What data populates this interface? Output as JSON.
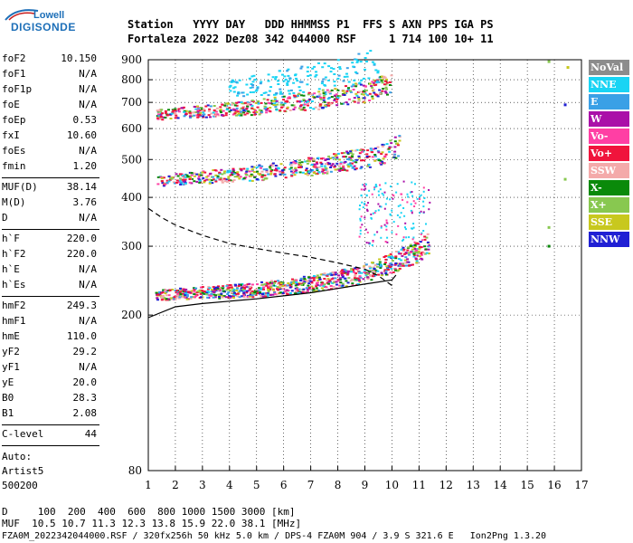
{
  "logo": {
    "top": "Lowell",
    "main": "DIGISONDE"
  },
  "header": {
    "line1": "Station   YYYY DAY   DDD HHMMSS P1  FFS S AXN PPS IGA PS",
    "line2": "Fortaleza 2022 Dez08 342 044000 RSF     1 714 100 10+ 11"
  },
  "params": {
    "group1": [
      {
        "label": "foF2",
        "value": "10.150"
      },
      {
        "label": "foF1",
        "value": "N/A"
      },
      {
        "label": "foF1p",
        "value": "N/A"
      },
      {
        "label": "foE",
        "value": "N/A"
      },
      {
        "label": "foEp",
        "value": "0.53"
      },
      {
        "label": "fxI",
        "value": "10.60"
      },
      {
        "label": "foEs",
        "value": "N/A"
      },
      {
        "label": "fmin",
        "value": "1.20"
      }
    ],
    "group2": [
      {
        "label": "MUF(D)",
        "value": "38.14"
      },
      {
        "label": "M(D)",
        "value": "3.76"
      },
      {
        "label": "D",
        "value": "N/A"
      }
    ],
    "group3": [
      {
        "label": "h`F",
        "value": "220.0"
      },
      {
        "label": "h`F2",
        "value": "220.0"
      },
      {
        "label": "h`E",
        "value": "N/A"
      },
      {
        "label": "h`Es",
        "value": "N/A"
      }
    ],
    "group4": [
      {
        "label": "hmF2",
        "value": "249.3"
      },
      {
        "label": "hmF1",
        "value": "N/A"
      },
      {
        "label": "hmE",
        "value": "110.0"
      },
      {
        "label": "yF2",
        "value": "29.2"
      },
      {
        "label": "yF1",
        "value": "N/A"
      },
      {
        "label": "yE",
        "value": "20.0"
      },
      {
        "label": "B0",
        "value": "28.3"
      },
      {
        "label": "B1",
        "value": "2.08"
      }
    ],
    "clevel": {
      "label": "C-level",
      "value": "44"
    },
    "auto": [
      "Auto:",
      "Artist5",
      "500200"
    ]
  },
  "footer": {
    "line1": "D     100  200  400  600  800 1000 1500 3000 [km]",
    "line2": "MUF  10.5 10.7 11.3 12.3 13.8 15.9 22.0 38.1 [MHz]",
    "line3": "FZA0M_2022342044000.RSF / 320fx256h 50 kHz 5.0 km / DPS-4 FZA0M 904 / 3.9 S 321.6 E   Ion2Png 1.3.20"
  },
  "colors": {
    "NoVal": "#8c8c8c",
    "NNE": "#19d4f4",
    "E": "#3aa0e6",
    "W": "#aa10a8",
    "Vo-": "#ff3fa4",
    "Vo+": "#f0143c",
    "SSW": "#f4aaaa",
    "X-": "#0a8a0a",
    "X+": "#88c850",
    "SSE": "#c8c81e",
    "NNW": "#2020d4"
  },
  "chart_data": {
    "type": "scatter",
    "xlabel": "",
    "ylabel": "",
    "xlim": [
      1,
      17
    ],
    "ylim": [
      80,
      900
    ],
    "x_ticks": [
      1,
      2,
      3,
      4,
      5,
      6,
      7,
      8,
      9,
      10,
      11,
      12,
      13,
      14,
      15,
      16,
      17
    ],
    "y_ticks": [
      80,
      200,
      300,
      400,
      500,
      600,
      700,
      800,
      900
    ],
    "y_scale": "log",
    "grid": true,
    "legend": {
      "placement": "right",
      "entries": [
        "NoVal",
        "NNE",
        "E",
        "W",
        "Vo-",
        "Vo+",
        "SSW",
        "X-",
        "X+",
        "SSE",
        "NNW"
      ]
    },
    "series": [
      {
        "name": "Vo+",
        "points": [
          [
            1.3,
            225
          ],
          [
            2,
            226
          ],
          [
            3,
            228
          ],
          [
            4,
            230
          ],
          [
            5,
            232
          ],
          [
            6,
            236
          ],
          [
            7,
            240
          ],
          [
            8,
            246
          ],
          [
            9,
            254
          ],
          [
            9.5,
            262
          ],
          [
            10,
            272
          ],
          [
            10.5,
            282
          ],
          [
            11,
            292
          ],
          [
            11.4,
            305
          ]
        ]
      },
      {
        "name": "Vo+",
        "points": [
          [
            1.3,
            440
          ],
          [
            2,
            445
          ],
          [
            3,
            450
          ],
          [
            4,
            455
          ],
          [
            5,
            462
          ],
          [
            6,
            470
          ],
          [
            7,
            480
          ],
          [
            8,
            492
          ],
          [
            9,
            505
          ],
          [
            9.5,
            515
          ],
          [
            10,
            530
          ],
          [
            10.3,
            545
          ]
        ]
      },
      {
        "name": "Vo+",
        "points": [
          [
            1.3,
            650
          ],
          [
            2,
            655
          ],
          [
            3,
            662
          ],
          [
            4,
            670
          ],
          [
            5,
            680
          ],
          [
            6,
            692
          ],
          [
            7,
            706
          ],
          [
            8,
            722
          ],
          [
            9,
            745
          ],
          [
            9.5,
            762
          ],
          [
            10,
            785
          ]
        ]
      },
      {
        "name": "NNE",
        "points": [
          [
            4,
            760
          ],
          [
            5,
            775
          ],
          [
            6,
            790
          ],
          [
            7,
            810
          ],
          [
            8,
            830
          ],
          [
            9,
            858
          ],
          [
            9.5,
            875
          ]
        ]
      }
    ],
    "curves": [
      {
        "name": "profile",
        "points": [
          [
            1,
            197
          ],
          [
            2,
            210
          ],
          [
            3,
            214
          ],
          [
            4,
            217
          ],
          [
            5,
            220
          ],
          [
            6,
            224
          ],
          [
            7,
            228
          ],
          [
            8,
            234
          ],
          [
            9,
            240
          ],
          [
            10,
            246
          ],
          [
            10.15,
            253
          ]
        ]
      },
      {
        "name": "ordinary trace (dashed)",
        "points": [
          [
            1,
            375
          ],
          [
            1.5,
            355
          ],
          [
            2,
            340
          ],
          [
            3,
            320
          ],
          [
            4,
            305
          ],
          [
            5,
            296
          ],
          [
            6,
            288
          ],
          [
            7,
            281
          ],
          [
            8,
            272
          ],
          [
            9,
            262
          ],
          [
            9.5,
            252
          ],
          [
            10,
            238
          ]
        ]
      }
    ]
  }
}
